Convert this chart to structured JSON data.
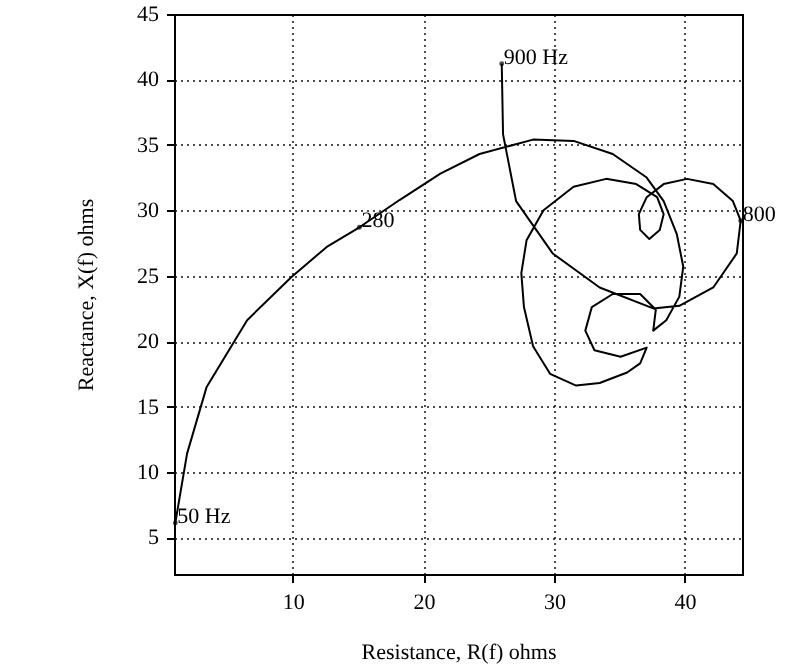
{
  "chart_data": {
    "type": "line",
    "xlabel": "Resistance, R(f) ohms",
    "ylabel": "Reactance, X(f) ohms",
    "x": [
      1.0,
      1.9,
      3.4,
      6.5,
      9.9,
      12.6,
      15.1,
      18.2,
      21.3,
      24.3,
      28.4,
      31.5,
      34.5,
      37.1,
      38.4,
      39.4,
      39.9,
      39.6,
      38.6,
      37.6,
      37.8,
      36.6,
      34.5,
      32.9,
      32.4,
      33.1,
      35.1,
      37.1,
      36.6,
      35.6,
      33.5,
      31.7,
      29.7,
      28.4,
      27.7,
      27.5,
      27.9,
      29.2,
      31.5,
      34.0,
      36.3,
      37.9,
      38.4,
      38.1,
      37.3,
      36.6,
      36.5,
      37.1,
      38.4,
      40.2,
      42.2,
      43.7,
      44.3,
      44.0,
      42.2,
      39.6,
      37.6,
      33.5,
      29.9,
      27.1,
      26.1,
      26.0
    ],
    "series": [
      {
        "color": "#000000",
        "values": [
          6.1,
          11.4,
          16.5,
          21.6,
          24.9,
          27.2,
          28.7,
          30.8,
          32.8,
          34.3,
          35.4,
          35.3,
          34.3,
          32.5,
          30.7,
          28.2,
          25.7,
          23.4,
          21.6,
          20.8,
          22.4,
          23.6,
          23.6,
          22.6,
          20.8,
          19.3,
          18.8,
          19.5,
          18.3,
          17.6,
          16.8,
          16.6,
          17.5,
          19.6,
          22.6,
          25.2,
          27.7,
          30.0,
          31.8,
          32.4,
          32.0,
          31.0,
          29.7,
          28.5,
          27.8,
          28.5,
          29.7,
          31.0,
          32.0,
          32.4,
          32.0,
          30.7,
          29.2,
          26.7,
          24.1,
          22.7,
          22.5,
          24.1,
          26.7,
          30.7,
          35.8,
          41.2
        ]
      }
    ],
    "xlim": [
      0.9,
      44.4
    ],
    "ylim": [
      2.2,
      45
    ],
    "xticks": [
      10,
      20,
      30,
      40
    ],
    "yticks": [
      5,
      10,
      15,
      20,
      25,
      30,
      35,
      40,
      45
    ],
    "grid": true,
    "annotations": [
      {
        "text": "50 Hz",
        "x": 1.0,
        "y": 6.1
      },
      {
        "text": "280",
        "x": 15.1,
        "y": 28.7
      },
      {
        "text": "800",
        "x": 44.3,
        "y": 29.2
      },
      {
        "text": "900 Hz",
        "x": 26.0,
        "y": 41.2
      }
    ]
  }
}
